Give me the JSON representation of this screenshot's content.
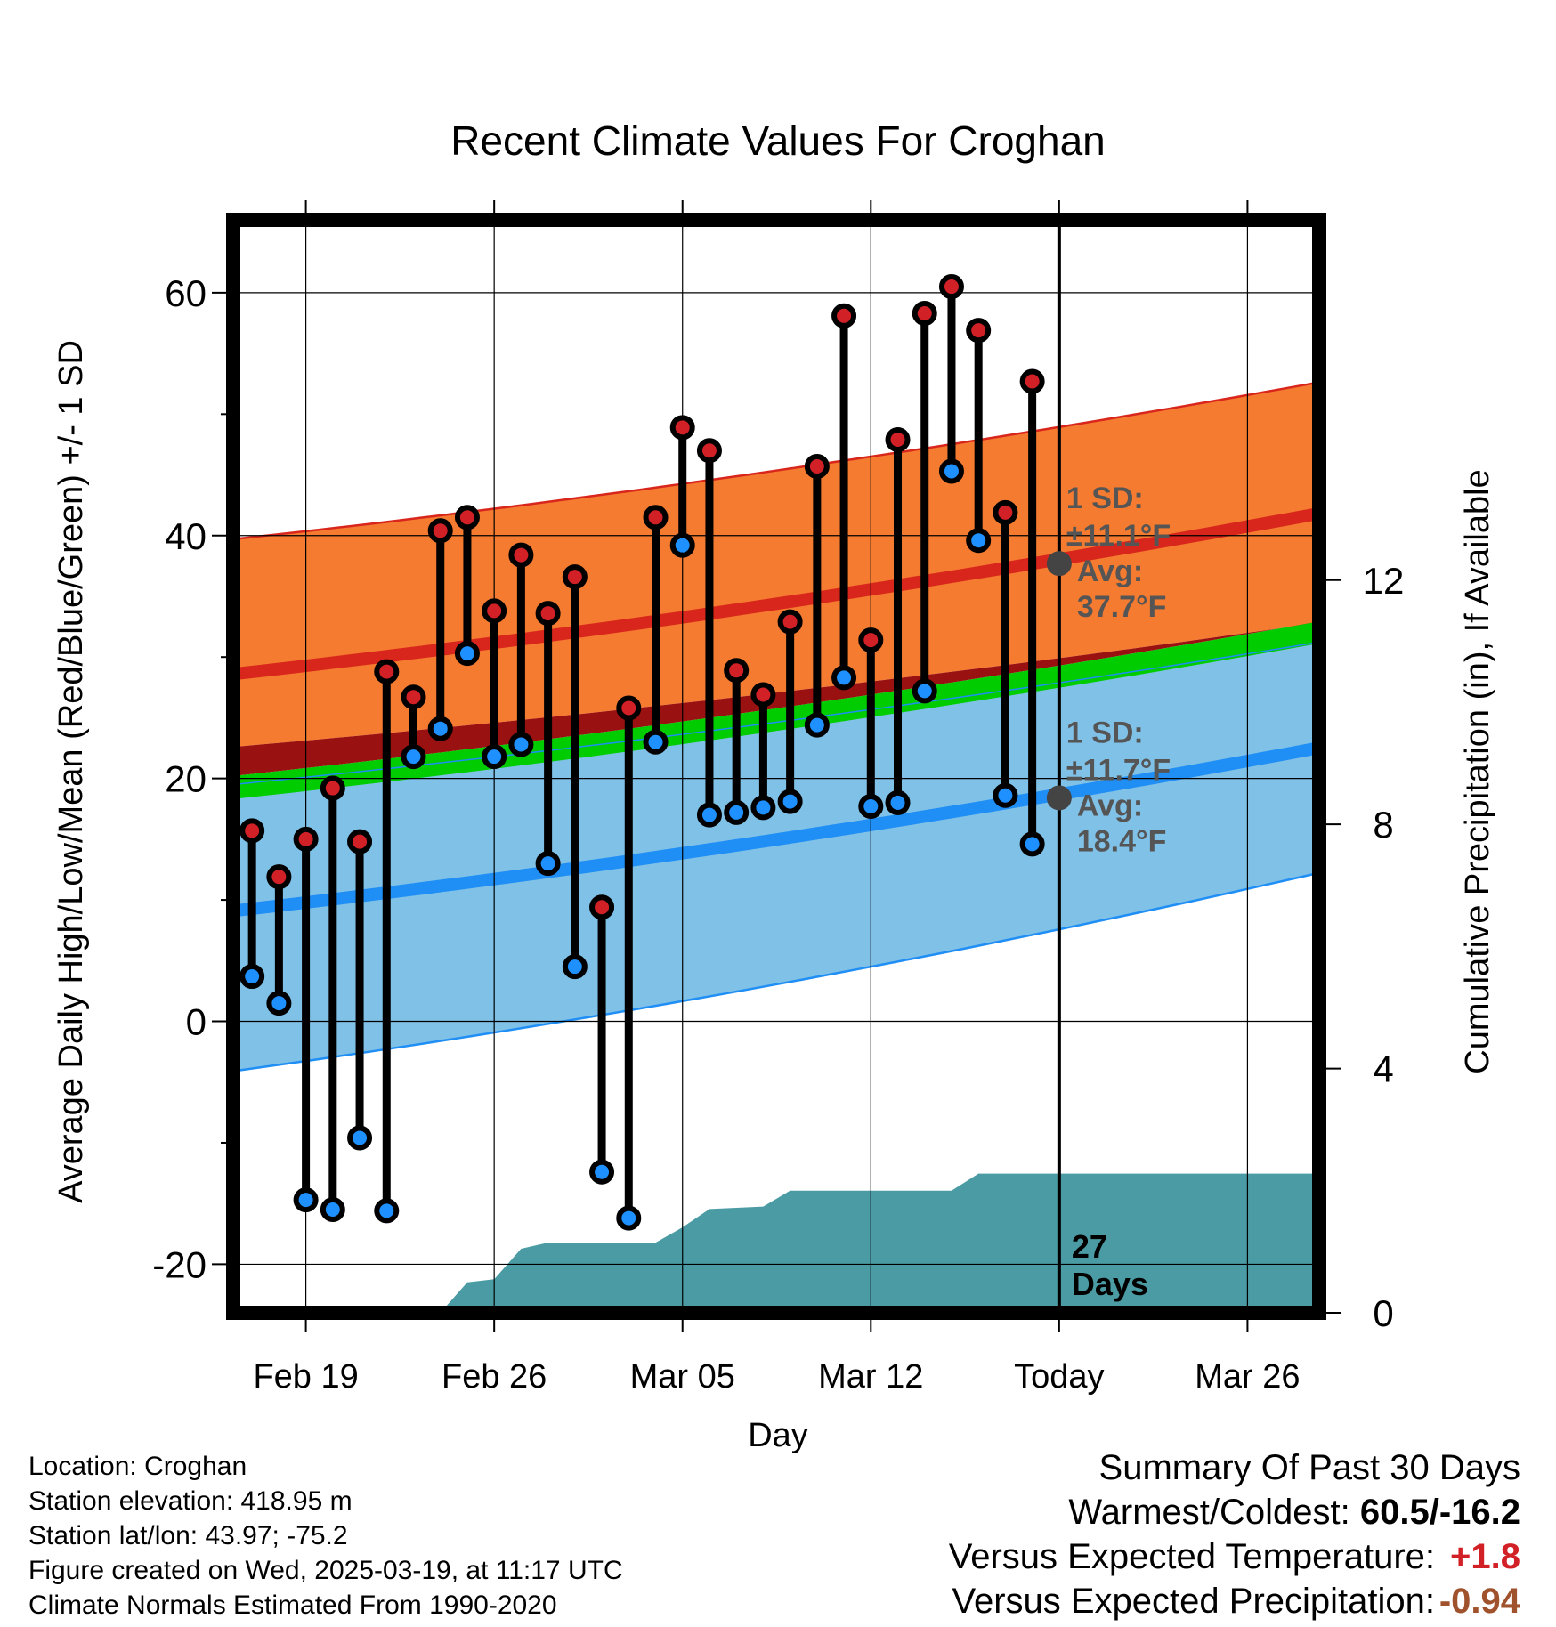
{
  "chart_data": {
    "type": "line",
    "title": "Recent Climate Values For Croghan",
    "xlabel": "Day",
    "ylabel": "Average Daily High/Low/Mean (Red/Blue/Green) +/- 1 SD",
    "y2label": "Cumulative Precipitation (in), If Available",
    "x_tick_labels": [
      "Feb 19",
      "Feb 26",
      "Mar 05",
      "Mar 12",
      "Today",
      "Mar 26"
    ],
    "x_tick_days": [
      2,
      9,
      16,
      23,
      30,
      37
    ],
    "x_range": [
      -0.7,
      39.6
    ],
    "ylim": [
      -24,
      66
    ],
    "y_ticks": [
      -20,
      0,
      20,
      40,
      60
    ],
    "y_minor_ticks": [
      -10,
      10,
      30,
      50
    ],
    "y2lim": [
      0,
      17.9
    ],
    "y2_ticks": [
      0,
      4,
      8,
      12
    ],
    "today_day": 30,
    "grid": true,
    "observed": {
      "days": [
        0,
        1,
        2,
        3,
        4,
        5,
        6,
        7,
        8,
        9,
        10,
        11,
        12,
        13,
        14,
        15,
        16,
        17,
        18,
        19,
        20,
        21,
        22,
        23,
        24,
        25,
        26,
        27,
        28,
        29
      ],
      "high": [
        15.7,
        11.9,
        15,
        19.2,
        14.8,
        28.8,
        26.7,
        40.4,
        41.5,
        33.8,
        38.4,
        33.6,
        36.6,
        9.4,
        25.8,
        41.5,
        48.9,
        47,
        28.9,
        26.9,
        32.9,
        45.7,
        58.1,
        31.4,
        47.9,
        58.3,
        60.5,
        56.9,
        41.9,
        52.7
      ],
      "low": [
        3.7,
        1.5,
        -14.7,
        -15.5,
        -9.6,
        -15.6,
        21.8,
        24.1,
        30.3,
        21.8,
        22.8,
        13,
        4.5,
        -12.4,
        -16.2,
        23,
        39.2,
        17,
        17.2,
        17.6,
        18.1,
        24.4,
        28.3,
        17.7,
        18,
        27.2,
        45.3,
        39.6,
        18.6,
        14.6
      ]
    },
    "normal_high": {
      "days": [
        -0.7,
        39.6
      ],
      "avg": [
        28.6,
        41.8
      ],
      "upper": [
        39.7,
        52.6
      ],
      "lower": [
        22.6,
        32.8
      ]
    },
    "normal_low": {
      "days": [
        -0.7,
        39.6
      ],
      "avg": [
        9.1,
        22.5
      ],
      "upper": [
        19.5,
        31.2
      ],
      "lower": [
        -4.1,
        12.2
      ]
    },
    "normal_mean_band": {
      "days": [
        -0.7,
        39.6
      ],
      "upper": [
        20.2,
        32.9
      ],
      "lower": [
        18.3,
        31.1
      ]
    },
    "precip_cumulative": {
      "days": [
        7,
        8,
        9,
        10,
        11,
        13,
        15,
        16,
        17,
        18,
        19,
        20,
        22,
        24,
        26,
        27,
        29,
        30,
        39.6
      ],
      "values": [
        0,
        0.5,
        0.55,
        1.05,
        1.15,
        1.15,
        1.15,
        1.4,
        1.7,
        1.72,
        1.74,
        2.0,
        2.0,
        2.0,
        2.0,
        2.28,
        2.28,
        2.28,
        2.28
      ]
    },
    "annotations": {
      "high_sd_label": "1 SD:",
      "high_sd_value": "±11.1°F",
      "high_avg_label": "Avg:",
      "high_avg_value": "37.7°F",
      "high_avg_point": 37.7,
      "low_sd_label": "1 SD:",
      "low_sd_value": "±11.7°F",
      "low_avg_label": "Avg:",
      "low_avg_value": "18.4°F",
      "low_avg_point": 18.4,
      "days_count": "27",
      "days_word": "Days"
    },
    "colors": {
      "high_band": "#f47b30",
      "high_line": "#d9261c",
      "low_band": "#80c1e7",
      "low_line": "#1f8ef5",
      "mean_band": "#00cc00",
      "overlap_band": "#9a1111",
      "precip_fill": "#4a9ba3",
      "high_dot": "#d22027",
      "low_dot": "#1e90ff",
      "annotation_text": "#555555"
    }
  },
  "location": {
    "line1": "Location: Croghan",
    "line2": "Station elevation: 418.95 m",
    "line3": "Station lat/lon: 43.97; -75.2",
    "line4": "Figure created on Wed, 2025-03-19, at 11:17 UTC",
    "line5": "Climate Normals Estimated From 1990-2020"
  },
  "summary": {
    "title": "Summary Of Past 30 Days",
    "warmest_label": "Warmest/Coldest: ",
    "warmest_value": "60.5/-16.2",
    "temp_label": "Versus Expected Temperature:",
    "temp_value": "+1.8",
    "temp_color": "#d22027",
    "precip_label": "Versus Expected Precipitation:",
    "precip_value": "-0.94",
    "precip_color": "#a0522d"
  }
}
